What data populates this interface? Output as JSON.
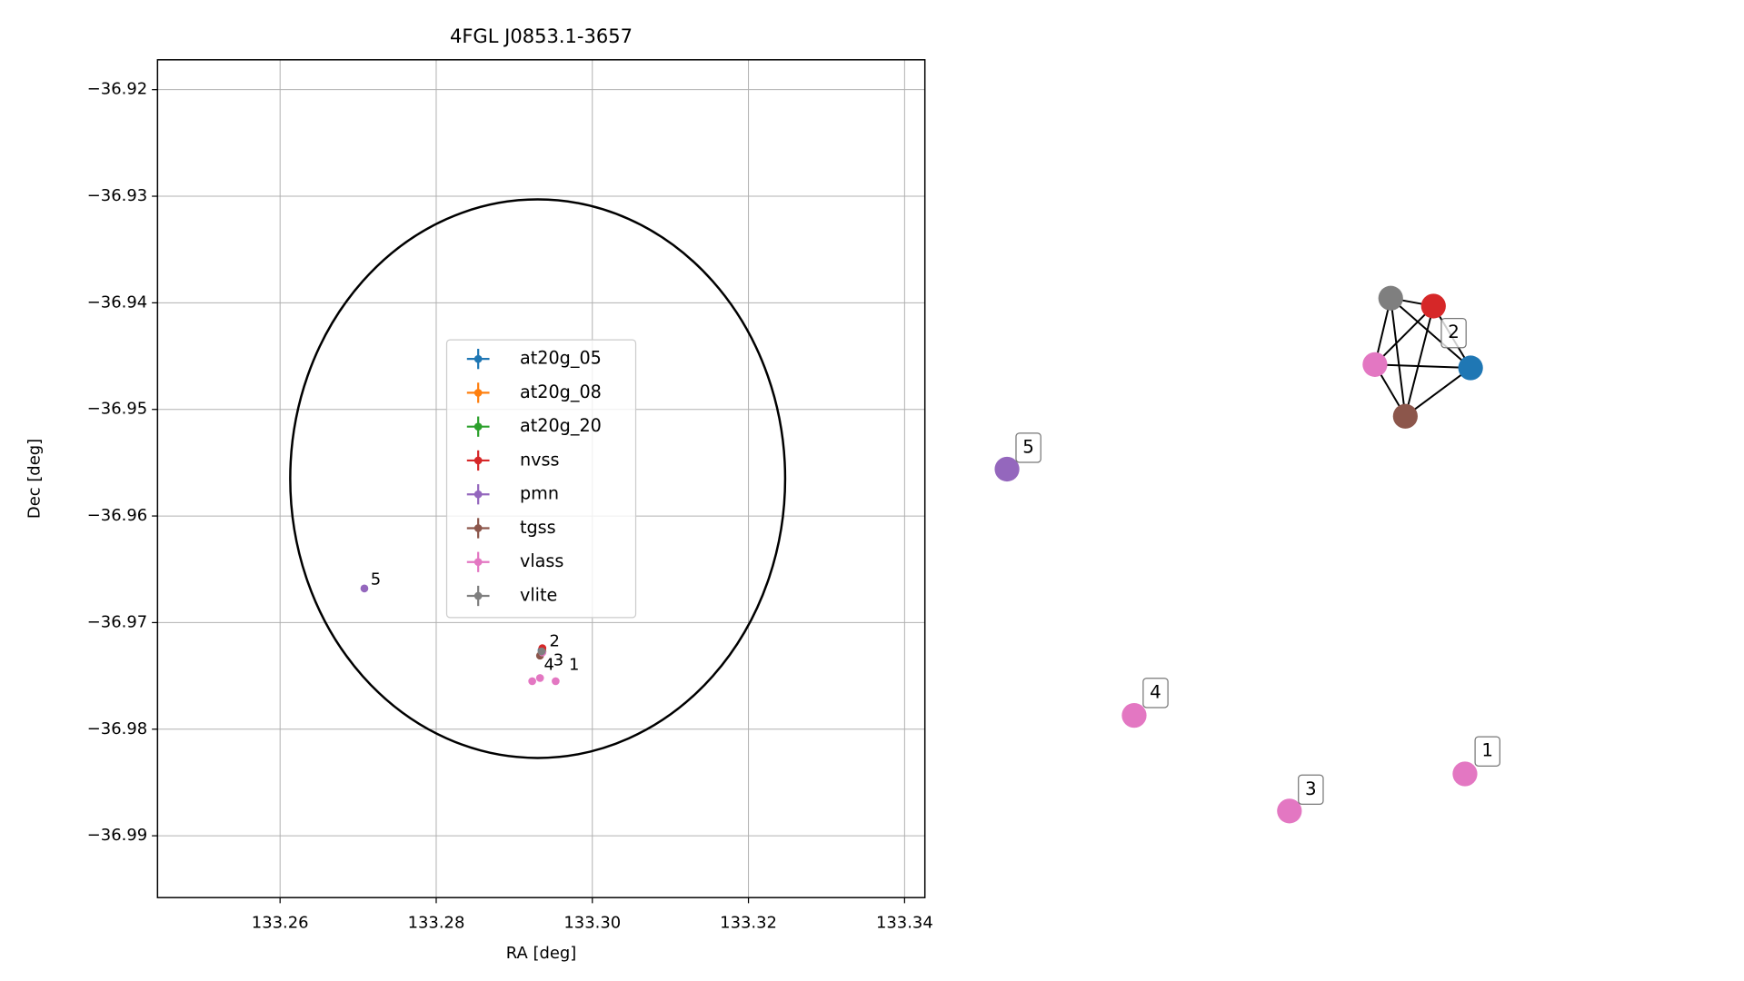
{
  "chart_data": [
    {
      "type": "scatter",
      "title": "4FGL J0853.1-3657",
      "xlabel": "RA [deg]",
      "ylabel": "Dec [deg]",
      "xlim": [
        133.2443,
        133.3426
      ],
      "ylim": [
        -36.9958,
        -36.9172
      ],
      "xticks": [
        133.26,
        133.28,
        {
          "value": 133.3,
          "label": "133.30"
        },
        133.32,
        133.34
      ],
      "yticks": [
        {
          "value": -36.92,
          "label": "−36.92"
        },
        {
          "value": -36.93,
          "label": "−36.93"
        },
        {
          "value": -36.94,
          "label": "−36.94"
        },
        {
          "value": -36.95,
          "label": "−36.95"
        },
        {
          "value": -36.96,
          "label": "−36.96"
        },
        {
          "value": -36.97,
          "label": "−36.97"
        },
        {
          "value": -36.98,
          "label": "−36.98"
        },
        {
          "value": -36.99,
          "label": "−36.99"
        }
      ],
      "grid": true,
      "ellipse": {
        "x": 133.293,
        "y": -36.9565,
        "width": 0.0634,
        "height": 0.0524,
        "color": "#000000"
      },
      "series": [
        {
          "name": "at20g_05",
          "color": "#1f77b4",
          "x": [
            133.2935
          ],
          "y": [
            -36.9726
          ]
        },
        {
          "name": "at20g_08",
          "color": "#ff7f0e",
          "x": [
            133.2936
          ],
          "y": [
            -36.9727
          ]
        },
        {
          "name": "at20g_20",
          "color": "#2ca02c",
          "x": [
            133.2936
          ],
          "y": [
            -36.9727
          ]
        },
        {
          "name": "nvss",
          "color": "#d62728",
          "x": [
            133.2936
          ],
          "y": [
            -36.9724
          ]
        },
        {
          "name": "pmn",
          "color": "#9467bd",
          "x": [
            133.2708
          ],
          "y": [
            -36.9668
          ]
        },
        {
          "name": "tgss",
          "color": "#8c564b",
          "x": [
            133.2933
          ],
          "y": [
            -36.9731
          ]
        },
        {
          "name": "vlass",
          "color": "#e377c2",
          "x": [
            133.2953,
            133.2936,
            133.2923,
            133.2933
          ],
          "y": [
            -36.9755,
            -36.9728,
            -36.9755,
            -36.9752
          ]
        },
        {
          "name": "vlite",
          "color": "#7f7f7f",
          "x": [
            133.2935
          ],
          "y": [
            -36.9727
          ]
        }
      ],
      "annotations": [
        {
          "text": "5",
          "x": 133.2716,
          "y": -36.966
        },
        {
          "text": "2",
          "x": 133.2945,
          "y": -36.9718
        },
        {
          "text": "3",
          "x": 133.295,
          "y": -36.9736
        },
        {
          "text": "4",
          "x": 133.2938,
          "y": -36.974
        },
        {
          "text": "1",
          "x": 133.297,
          "y": -36.974
        }
      ]
    },
    {
      "type": "network",
      "nodes": [
        {
          "color": "#7f7f7f"
        },
        {
          "color": "#d62728",
          "label": "2"
        },
        {
          "color": "#e377c2"
        },
        {
          "color": "#1f77b4"
        },
        {
          "color": "#8c564b"
        },
        {
          "color": "#9467bd",
          "label": "5"
        },
        {
          "color": "#e377c2",
          "label": "4"
        },
        {
          "color": "#e377c2",
          "label": "3"
        },
        {
          "color": "#e377c2",
          "label": "1"
        }
      ],
      "edges": [
        [
          0,
          1
        ],
        [
          0,
          3
        ],
        [
          0,
          4
        ],
        [
          1,
          2
        ],
        [
          1,
          4
        ],
        [
          1,
          3
        ],
        [
          2,
          3
        ],
        [
          2,
          4
        ],
        [
          3,
          4
        ],
        [
          0,
          2
        ]
      ]
    }
  ]
}
